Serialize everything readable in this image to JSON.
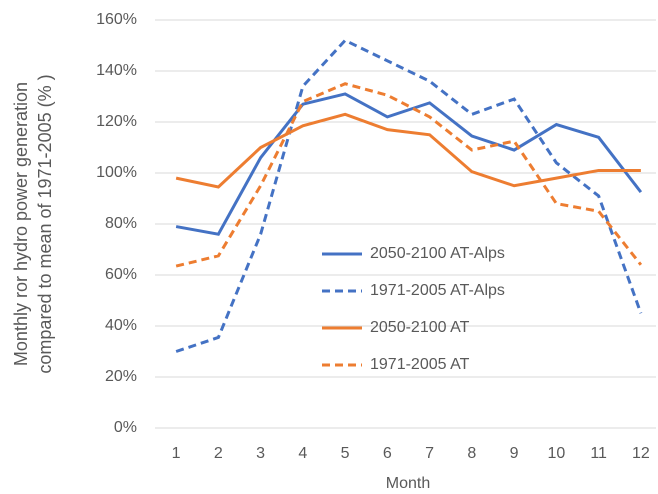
{
  "chart_data": {
    "type": "line",
    "ylabel": [
      "Monthly ror hydro power generation",
      "compared to mean of 1971-2005 (% )"
    ],
    "xlabel": "Month",
    "categories": [
      "1",
      "2",
      "3",
      "4",
      "5",
      "6",
      "7",
      "8",
      "9",
      "10",
      "11",
      "12"
    ],
    "series": [
      {
        "name": "2050-2100 AT-Alps",
        "color": "#4472c4",
        "dash": false,
        "values": [
          79,
          76,
          106,
          127,
          131,
          122,
          127.5,
          114.5,
          109,
          119,
          114,
          92.5
        ]
      },
      {
        "name": "1971-2005 AT-Alps",
        "color": "#4472c4",
        "dash": true,
        "values": [
          30,
          35.5,
          76,
          134,
          152,
          144,
          136,
          123,
          129,
          104,
          91,
          45
        ]
      },
      {
        "name": "2050-2100 AT",
        "color": "#ed7d31",
        "dash": false,
        "values": [
          98,
          94.5,
          110,
          118.5,
          123,
          117,
          115,
          100.5,
          95,
          98,
          101,
          101
        ]
      },
      {
        "name": "1971-2005 AT",
        "color": "#ed7d31",
        "dash": true,
        "values": [
          63.5,
          67.5,
          95,
          128,
          135,
          130.5,
          122,
          109,
          112.5,
          88,
          85,
          64
        ]
      }
    ],
    "ylim": [
      0,
      160
    ],
    "yticks": [
      {
        "value": 0,
        "label": "0%"
      },
      {
        "value": 20,
        "label": "20%"
      },
      {
        "value": 40,
        "label": "40%"
      },
      {
        "value": 60,
        "label": "60%"
      },
      {
        "value": 80,
        "label": "80%"
      },
      {
        "value": 100,
        "label": "100%"
      },
      {
        "value": 120,
        "label": "120%"
      },
      {
        "value": 140,
        "label": "140%"
      },
      {
        "value": 160,
        "label": "160%"
      }
    ],
    "grid": true,
    "legend": "center"
  }
}
